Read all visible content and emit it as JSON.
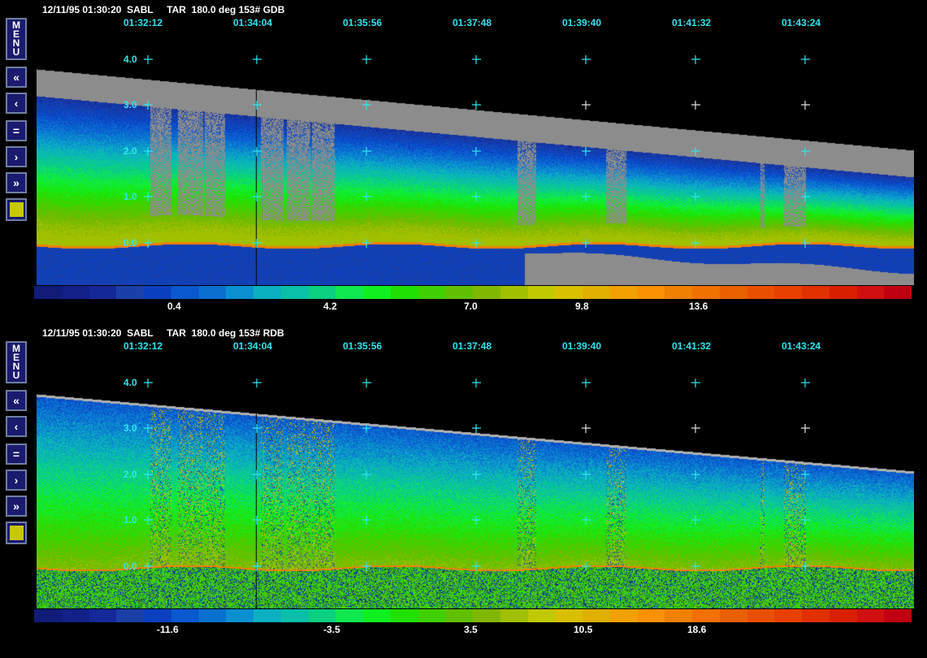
{
  "panels": [
    {
      "title": "12/11/95 01:30:20  SABL     TAR  180.0 deg 153# GDB",
      "times": [
        "01:32:12",
        "01:34:04",
        "01:35:56",
        "01:37:48",
        "01:39:40",
        "01:41:32",
        "01:43:24"
      ],
      "height_labels": [
        "4.0",
        "3.0",
        "2.0",
        "1.0",
        "0.0"
      ],
      "colorbar_labels": [
        "0.4",
        "4.2",
        "7.0",
        "9.8",
        "13.6"
      ]
    },
    {
      "title": "12/11/95 01:30:20  SABL     TAR  180.0 deg 153# RDB",
      "times": [
        "01:32:12",
        "01:34:04",
        "01:35:56",
        "01:37:48",
        "01:39:40",
        "01:41:32",
        "01:43:24"
      ],
      "height_labels": [
        "4.0",
        "3.0",
        "2.0",
        "1.0",
        "0.0"
      ],
      "colorbar_labels": [
        "-11.6",
        "-3.5",
        "3.5",
        "10.5",
        "18.6"
      ]
    }
  ],
  "buttons": {
    "menu": "MENU",
    "rewind": "«",
    "back": "‹",
    "equal": "=",
    "forward": "›",
    "fast_forward": "»"
  },
  "colors": {
    "grid": "#2ee6f0",
    "nodata": "#8c8c8c",
    "button_bg": "#1a1a6e",
    "swatch": "#c8c800"
  },
  "colorbar": [
    "#101c78",
    "#122088",
    "#142898",
    "#1a40a8",
    "#0a40c0",
    "#0a58d0",
    "#0a70d0",
    "#0a90d0",
    "#0ab0c0",
    "#0ac0a8",
    "#0ad080",
    "#10e850",
    "#10f020",
    "#20e000",
    "#40d000",
    "#60c000",
    "#80b800",
    "#a0c000",
    "#c0c800",
    "#d8c000",
    "#e0b000",
    "#f0a000",
    "#f89000",
    "#f08000",
    "#f07000",
    "#e86000",
    "#e85000",
    "#e84000",
    "#e03000",
    "#d82000",
    "#d01010",
    "#c00010"
  ]
}
